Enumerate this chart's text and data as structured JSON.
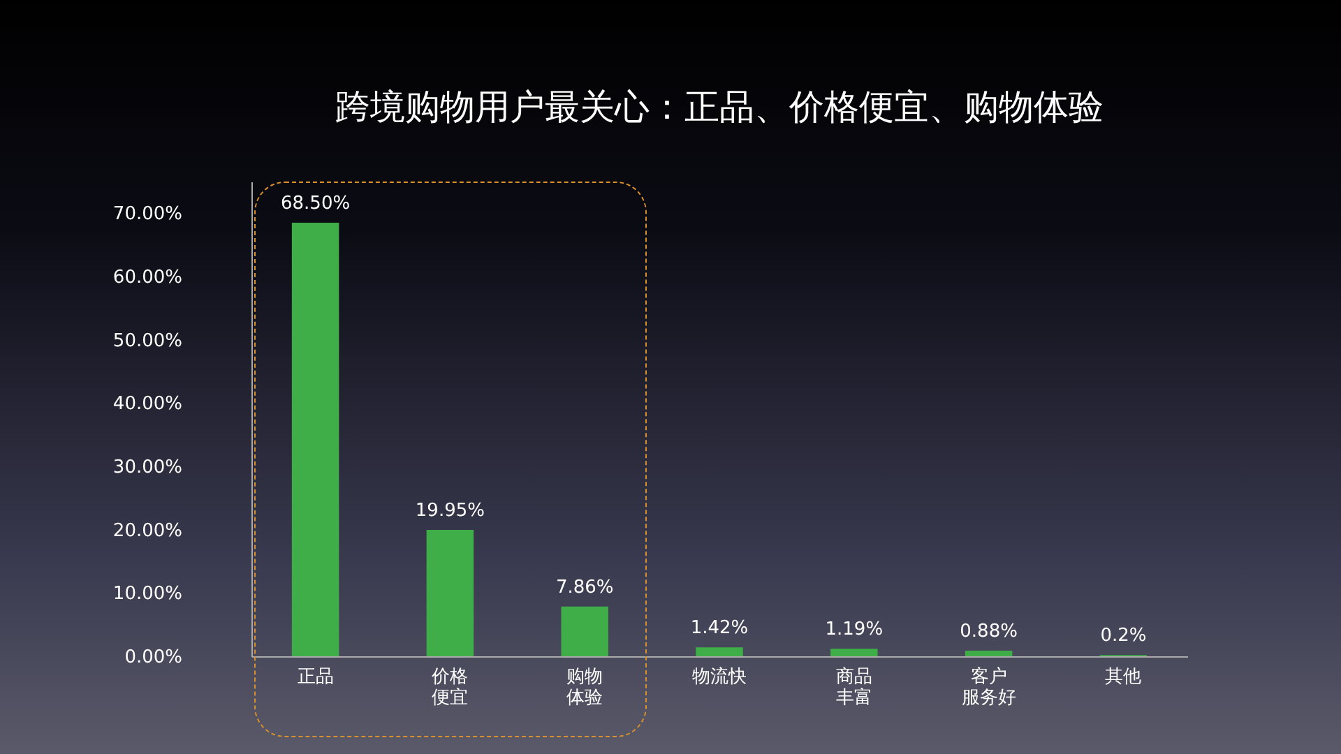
{
  "chart_data": {
    "type": "bar",
    "title": "跨境购物用户最关心：正品、价格便宜、购物体验",
    "categories": [
      "正品",
      "价格便宜",
      "购物体验",
      "物流快",
      "商品丰富",
      "客户服务好",
      "其他"
    ],
    "values": [
      68.5,
      19.95,
      7.86,
      1.42,
      1.19,
      0.88,
      0.2
    ],
    "value_labels": [
      "68.50%",
      "19.95%",
      "7.86%",
      "1.42%",
      "1.19%",
      "0.88%",
      "0.2%"
    ],
    "color": "#3fae49",
    "ylim": [
      0,
      75
    ],
    "yticks": [
      {
        "value": 0,
        "label": "0.00%"
      },
      {
        "value": 10,
        "label": "10.00%"
      },
      {
        "value": 20,
        "label": "20.00%"
      },
      {
        "value": 30,
        "label": "30.00%"
      },
      {
        "value": 40,
        "label": "40.00%"
      },
      {
        "value": 50,
        "label": "50.00%"
      },
      {
        "value": 60,
        "label": "60.00%"
      },
      {
        "value": 70,
        "label": "70.00%"
      }
    ],
    "grid": false
  }
}
